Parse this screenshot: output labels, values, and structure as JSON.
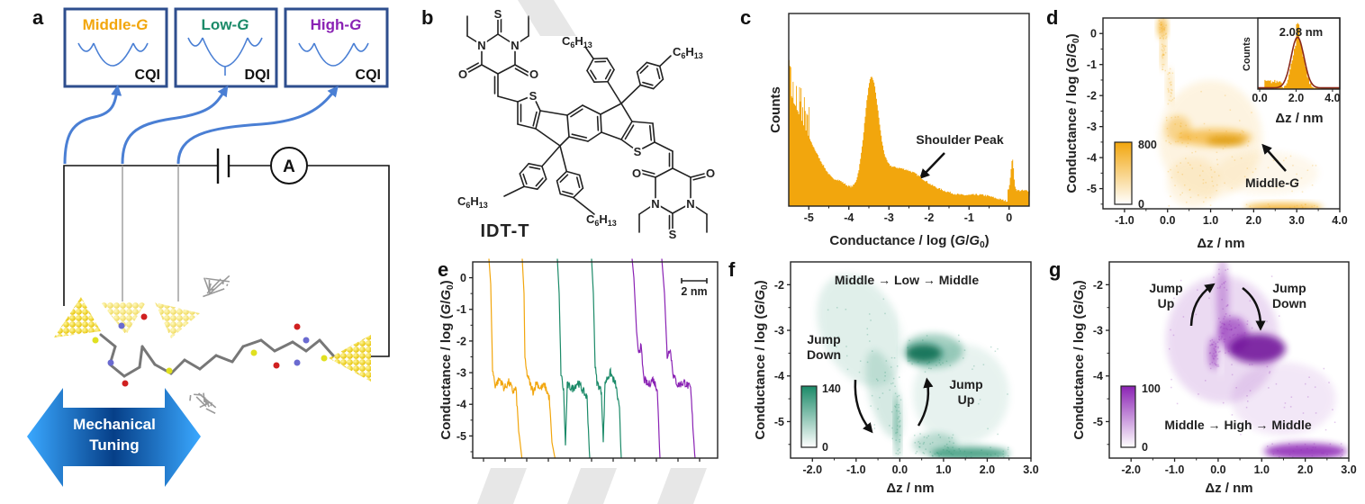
{
  "panel_labels": {
    "a": "a",
    "b": "b",
    "c": "c",
    "d": "d",
    "e": "e",
    "f": "f",
    "g": "g"
  },
  "colors": {
    "middle": "#F2A60D",
    "low": "#1B8A68",
    "high": "#8A22B4",
    "box": "#2E4E8E",
    "arrow": "#4A7FD4",
    "fit": "#8B2A1A"
  },
  "axis_labels": {
    "conductance": {
      "pre": "Conductance / log (",
      "g": "G",
      "slash": "/",
      "g0": "G",
      "sub": "0",
      "post": ")"
    },
    "dz": "Δz / nm",
    "counts": "Counts"
  },
  "panel_a": {
    "states": [
      {
        "name": "Middle-",
        "g": "G",
        "type": "CQI"
      },
      {
        "name": "Low-",
        "g": "G",
        "type": "DQI"
      },
      {
        "name": "High-",
        "g": "G",
        "type": "CQI"
      }
    ],
    "ammeter": "A",
    "tuning": [
      "Mechanical",
      "Tuning"
    ]
  },
  "panel_b": {
    "name": "IDT-T",
    "atoms": {
      "S": "S",
      "O": "O",
      "N": "N"
    },
    "substituent": {
      "c": "C",
      "n1": "6",
      "h": "H",
      "n2": "13"
    }
  },
  "panel_c": {
    "xticks": [
      "-5",
      "-4",
      "-3",
      "-2",
      "-1",
      "0"
    ],
    "xlim": [
      -5.5,
      0.5
    ],
    "annotation": "Shoulder Peak"
  },
  "panel_d": {
    "xticks": [
      "-1.0",
      "0.0",
      "1.0",
      "2.0",
      "3.0",
      "4.0"
    ],
    "yticks": [
      "0",
      "-1",
      "-2",
      "-3",
      "-4",
      "-5"
    ],
    "xlim": [
      -1.5,
      4.0
    ],
    "ylim": [
      -5.65,
      0.5
    ],
    "colorbar": {
      "max": "800",
      "min": "0"
    },
    "annotation": {
      "pre": "Middle-",
      "g": "G"
    },
    "inset": {
      "xticks": [
        "0.0",
        "2.0",
        "4.0"
      ],
      "peak_label": "2.08 nm",
      "peak": 2.08
    }
  },
  "panel_e": {
    "yticks": [
      "0",
      "-1",
      "-2",
      "-3",
      "-4",
      "-5"
    ],
    "ylim": [
      -5.7,
      0.5
    ],
    "scalebar": "2 nm"
  },
  "panel_f": {
    "xticks": [
      "-2.0",
      "-1.0",
      "0.0",
      "1.0",
      "2.0",
      "3.0"
    ],
    "yticks": [
      "-2",
      "-3",
      "-4",
      "-5"
    ],
    "xlim": [
      -2.5,
      3.0
    ],
    "ylim": [
      -5.8,
      -1.5
    ],
    "title": "Middle → Low → Middle",
    "jump_down": [
      "Jump",
      "Down"
    ],
    "jump_up": [
      "Jump",
      "Up"
    ],
    "colorbar": {
      "max": "140",
      "min": "0"
    }
  },
  "panel_g": {
    "xticks": [
      "-2.0",
      "-1.0",
      "0.0",
      "1.0",
      "2.0",
      "3.0"
    ],
    "yticks": [
      "-2",
      "-3",
      "-4",
      "-5"
    ],
    "xlim": [
      -2.5,
      3.0
    ],
    "ylim": [
      -5.8,
      -1.5
    ],
    "title": "Middle → High → Middle",
    "jump_up": [
      "Jump",
      "Up"
    ],
    "jump_down": [
      "Jump",
      "Down"
    ],
    "colorbar": {
      "max": "100",
      "min": "0"
    }
  }
}
